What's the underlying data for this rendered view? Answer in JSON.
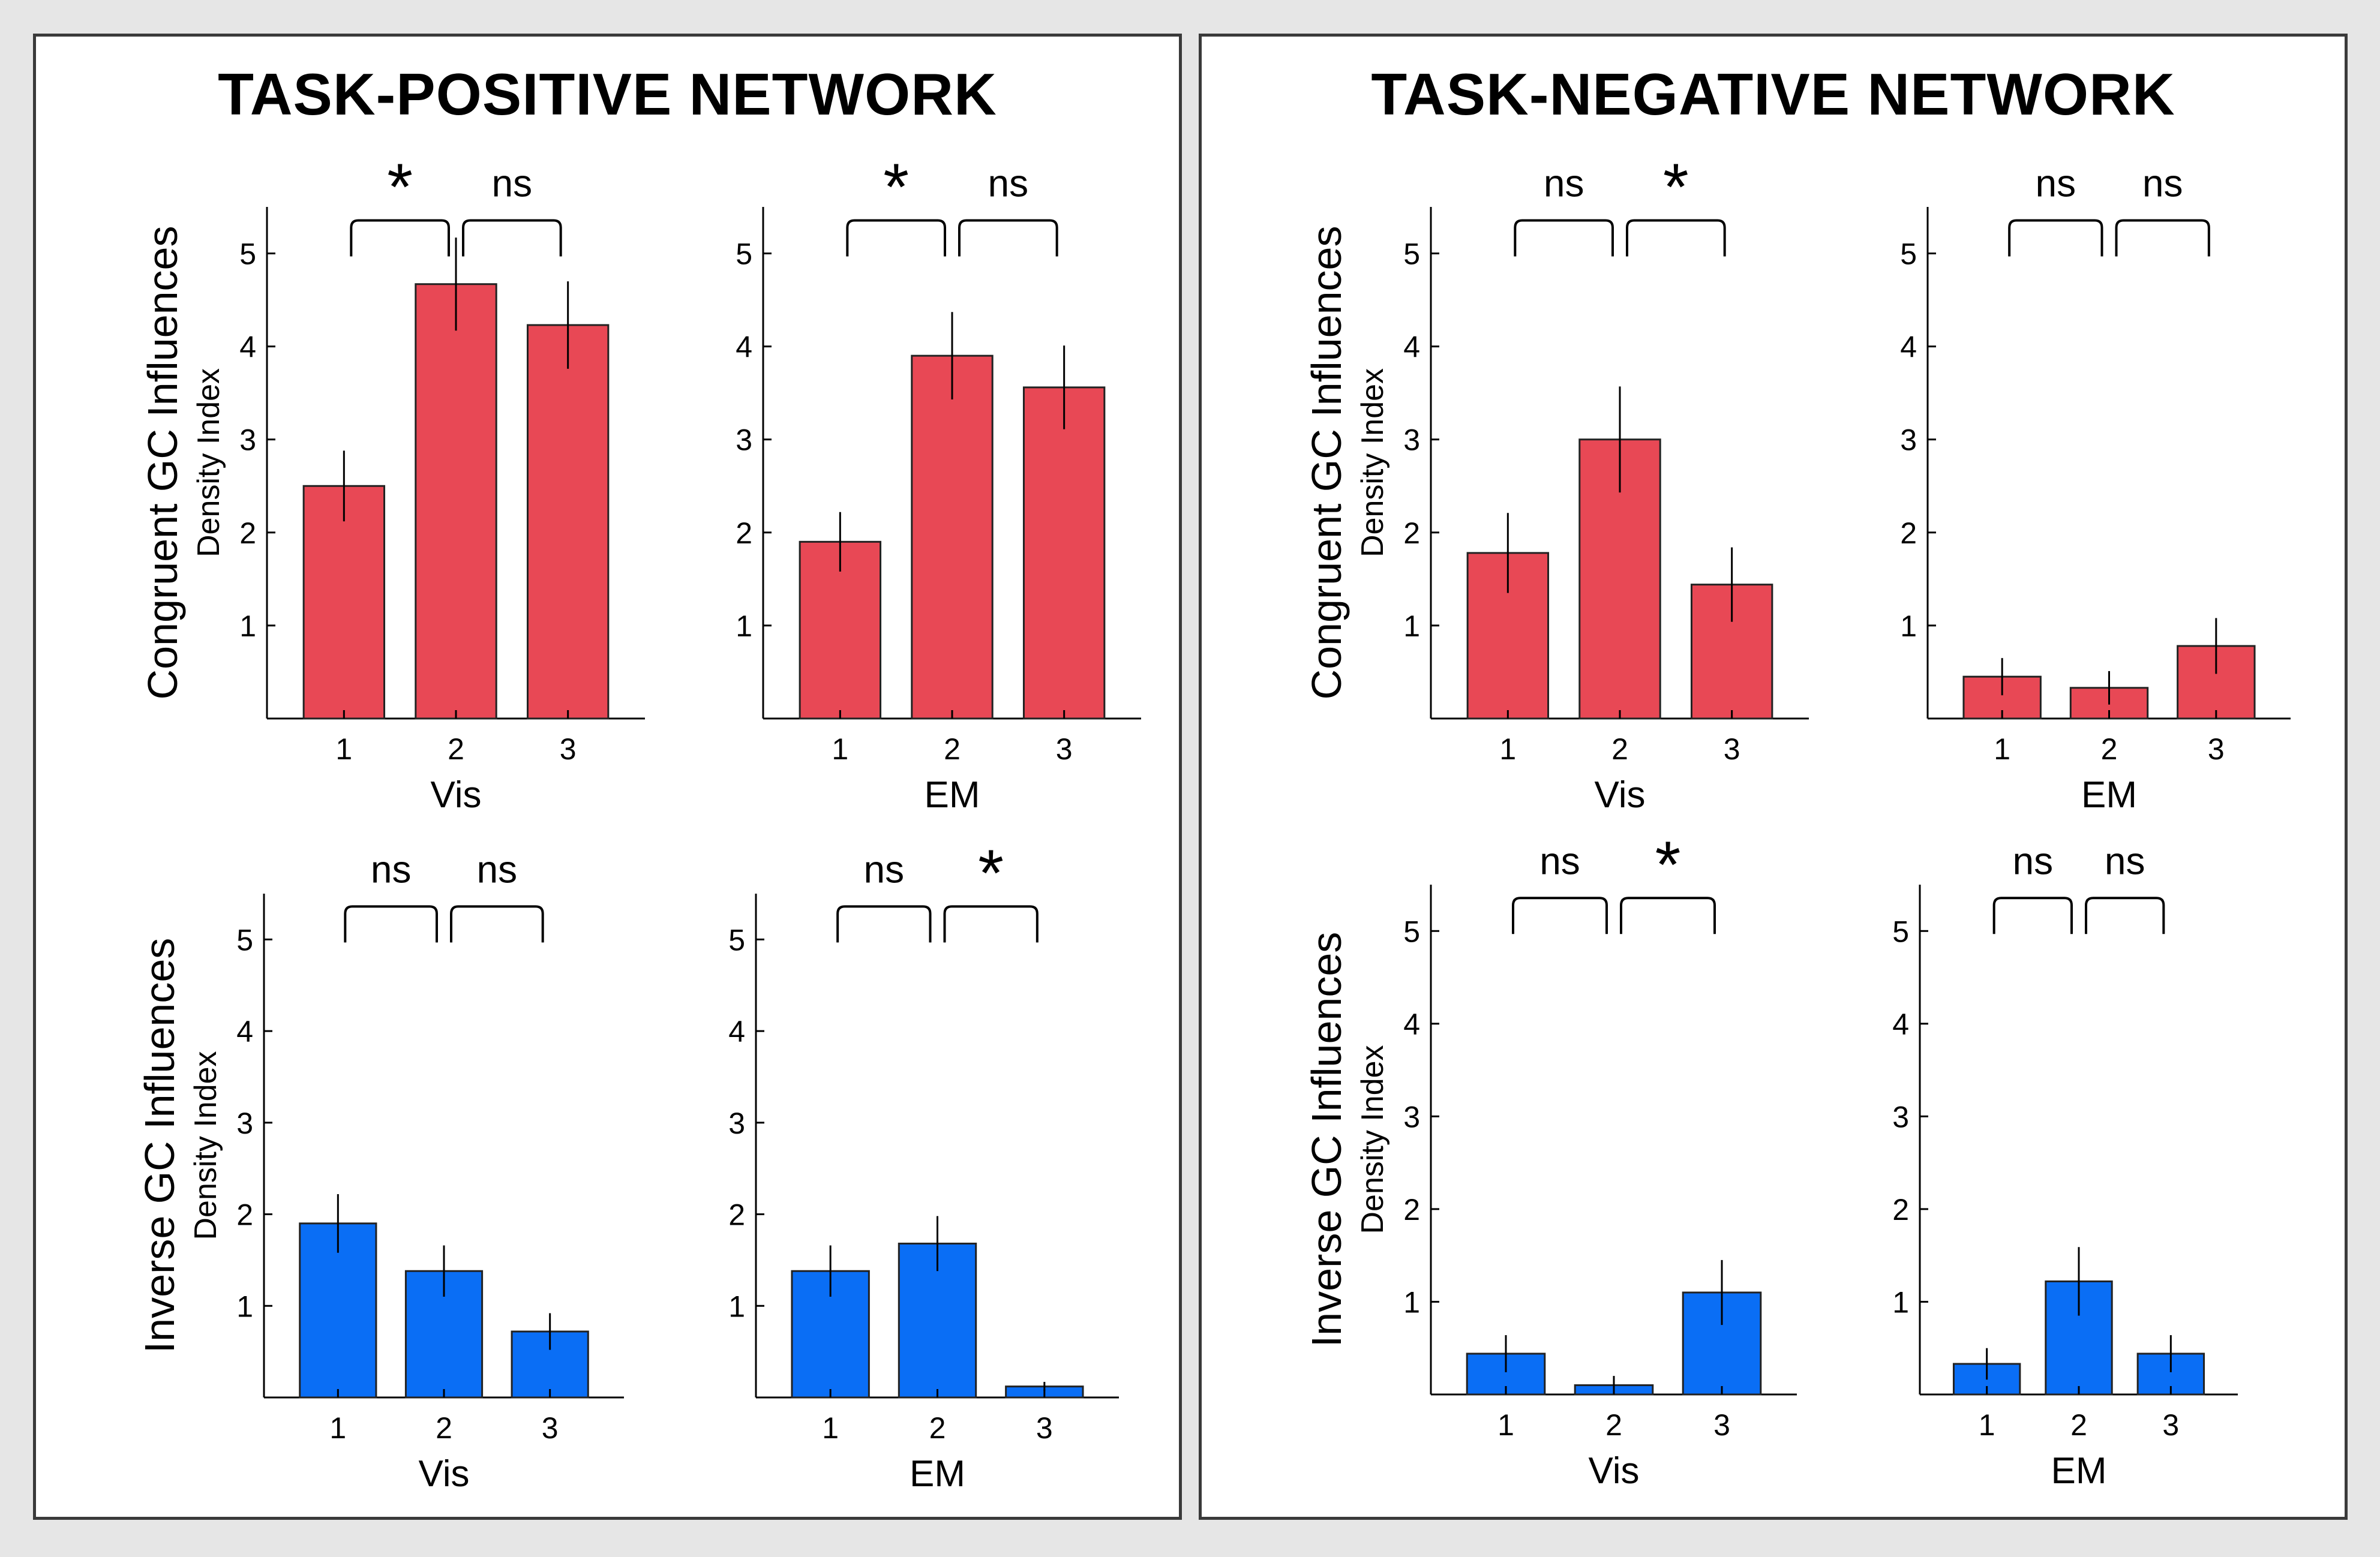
{
  "panels": {
    "left_title": "TASK-POSITIVE NETWORK",
    "right_title": "TASK-NEGATIVE NETWORK"
  },
  "colors": {
    "congruent": "#e84855",
    "inverse": "#0a6ef5",
    "axis": "#000000",
    "frame": "#3a3a3a",
    "background": "#e6e6e6"
  },
  "chart_data": [
    {
      "id": "tpn-congruent-vis",
      "type": "bar",
      "panel": "TASK-POSITIVE NETWORK",
      "categories": [
        "1",
        "2",
        "3"
      ],
      "values": [
        2.5,
        4.67,
        4.23
      ],
      "error": [
        0.38,
        0.5,
        0.47
      ],
      "xlabel": "Vis",
      "ylabel": "Congruent GC Influences",
      "ylabel_sub": "Density Index",
      "yticks": [
        "1",
        "2",
        "3",
        "4",
        "5"
      ],
      "ylim": [
        0,
        5.5
      ],
      "significance": [
        "*",
        "ns"
      ],
      "color": "congruent"
    },
    {
      "id": "tpn-congruent-em",
      "type": "bar",
      "panel": "TASK-POSITIVE NETWORK",
      "categories": [
        "1",
        "2",
        "3"
      ],
      "values": [
        1.9,
        3.9,
        3.56
      ],
      "error": [
        0.32,
        0.47,
        0.45
      ],
      "xlabel": "EM",
      "ylabel": "",
      "ylabel_sub": "",
      "yticks": [
        "1",
        "2",
        "3",
        "4",
        "5"
      ],
      "ylim": [
        0,
        5.5
      ],
      "significance": [
        "*",
        "ns"
      ],
      "color": "congruent"
    },
    {
      "id": "tpn-inverse-vis",
      "type": "bar",
      "panel": "TASK-POSITIVE NETWORK",
      "categories": [
        "1",
        "2",
        "3"
      ],
      "values": [
        1.9,
        1.38,
        0.72
      ],
      "error": [
        0.32,
        0.28,
        0.2
      ],
      "xlabel": "Vis",
      "ylabel": "Inverse GC Influences",
      "ylabel_sub": "Density Index",
      "yticks": [
        "1",
        "2",
        "3",
        "4",
        "5"
      ],
      "ylim": [
        0,
        5.5
      ],
      "significance": [
        "ns",
        "ns"
      ],
      "color": "inverse"
    },
    {
      "id": "tpn-inverse-em",
      "type": "bar",
      "panel": "TASK-POSITIVE NETWORK",
      "categories": [
        "1",
        "2",
        "3"
      ],
      "values": [
        1.38,
        1.68,
        0.12
      ],
      "error": [
        0.28,
        0.3,
        0.05
      ],
      "xlabel": "EM",
      "ylabel": "",
      "ylabel_sub": "",
      "yticks": [
        "1",
        "2",
        "3",
        "4",
        "5"
      ],
      "ylim": [
        0,
        5.5
      ],
      "significance": [
        "ns",
        "*"
      ],
      "color": "inverse"
    },
    {
      "id": "tnn-congruent-vis",
      "type": "bar",
      "panel": "TASK-NEGATIVE NETWORK",
      "categories": [
        "1",
        "2",
        "3"
      ],
      "values": [
        1.78,
        3.0,
        1.44
      ],
      "error": [
        0.43,
        0.57,
        0.4
      ],
      "xlabel": "Vis",
      "ylabel": "Congruent GC Influences",
      "ylabel_sub": "Density Index",
      "yticks": [
        "1",
        "2",
        "3",
        "4",
        "5"
      ],
      "ylim": [
        0,
        5.5
      ],
      "significance": [
        "ns",
        "*"
      ],
      "color": "congruent"
    },
    {
      "id": "tnn-congruent-em",
      "type": "bar",
      "panel": "TASK-NEGATIVE NETWORK",
      "categories": [
        "1",
        "2",
        "3"
      ],
      "values": [
        0.45,
        0.33,
        0.78
      ],
      "error": [
        0.2,
        0.18,
        0.3
      ],
      "xlabel": "EM",
      "ylabel": "",
      "ylabel_sub": "",
      "yticks": [
        "1",
        "2",
        "3",
        "4",
        "5"
      ],
      "ylim": [
        0,
        5.5
      ],
      "significance": [
        "ns",
        "ns"
      ],
      "color": "congruent"
    },
    {
      "id": "tnn-inverse-vis",
      "type": "bar",
      "panel": "TASK-NEGATIVE NETWORK",
      "categories": [
        "1",
        "2",
        "3"
      ],
      "values": [
        0.44,
        0.1,
        1.1
      ],
      "error": [
        0.2,
        0.1,
        0.35
      ],
      "xlabel": "Vis",
      "ylabel": "Inverse GC Influences",
      "ylabel_sub": "Density Index",
      "yticks": [
        "1",
        "2",
        "3",
        "4",
        "5"
      ],
      "ylim": [
        0,
        5.5
      ],
      "significance": [
        "ns",
        "*"
      ],
      "color": "inverse"
    },
    {
      "id": "tnn-inverse-em",
      "type": "bar",
      "panel": "TASK-NEGATIVE NETWORK",
      "categories": [
        "1",
        "2",
        "3"
      ],
      "values": [
        0.33,
        1.22,
        0.44
      ],
      "error": [
        0.17,
        0.37,
        0.2
      ],
      "xlabel": "EM",
      "ylabel": "",
      "ylabel_sub": "",
      "yticks": [
        "1",
        "2",
        "3",
        "4",
        "5"
      ],
      "ylim": [
        0,
        5.5
      ],
      "significance": [
        "ns",
        "ns"
      ],
      "color": "inverse"
    }
  ]
}
